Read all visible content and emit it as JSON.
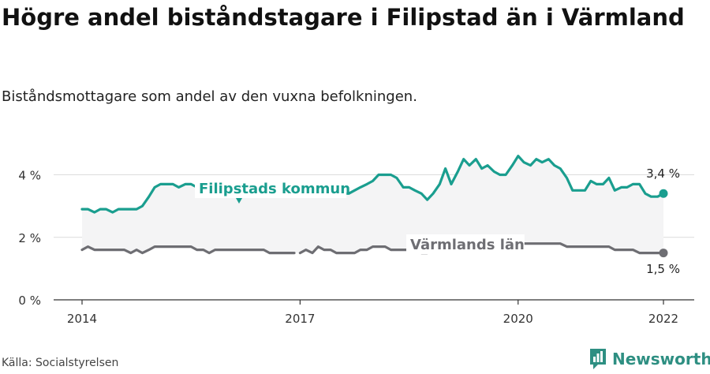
{
  "title": "Högre andel biståndstagare i Filipstad än i Värmland",
  "subtitle": "Biståndsmottagare som andel av den vuxna befolkningen.",
  "source": "Källa: Socialstyrelsen",
  "brand": "Newsworthy",
  "chart_data": {
    "type": "line",
    "y_unit": "%",
    "ylim": [
      0,
      5.3
    ],
    "yticks": [
      0,
      2,
      4
    ],
    "ytick_labels": [
      "0 %",
      "2 %",
      "4 %"
    ],
    "xlim": [
      2014.0,
      2022.0
    ],
    "xticks": [
      2014,
      2017,
      2020,
      2022
    ],
    "xtick_labels": [
      "2014",
      "2017",
      "2020",
      "2022"
    ],
    "grid": true,
    "colors": {
      "filipstad": "#1a9e8f",
      "varmland": "#6e6e73",
      "shade": "#f4f4f5"
    },
    "series": [
      {
        "name": "Filipstads kommun",
        "end_label": "3,4 %",
        "points": [
          [
            2014.0,
            2.9
          ],
          [
            2014.08,
            2.9
          ],
          [
            2014.17,
            2.8
          ],
          [
            2014.25,
            2.9
          ],
          [
            2014.33,
            2.9
          ],
          [
            2014.42,
            2.8
          ],
          [
            2014.5,
            2.9
          ],
          [
            2014.58,
            2.9
          ],
          [
            2014.67,
            2.9
          ],
          [
            2014.75,
            2.9
          ],
          [
            2014.83,
            3.0
          ],
          [
            2014.92,
            3.3
          ],
          [
            2015.0,
            3.6
          ],
          [
            2015.08,
            3.7
          ],
          [
            2015.17,
            3.7
          ],
          [
            2015.25,
            3.7
          ],
          [
            2015.33,
            3.6
          ],
          [
            2015.42,
            3.7
          ],
          [
            2015.5,
            3.7
          ],
          [
            2015.58,
            3.6
          ],
          [
            2015.67,
            3.5
          ],
          [
            2015.75,
            3.3
          ],
          [
            2015.83,
            3.3
          ],
          [
            2015.92,
            3.3
          ],
          [
            2016.0,
            3.4
          ],
          [
            2016.08,
            3.3
          ],
          [
            2016.17,
            3.3
          ],
          [
            2016.25,
            3.3
          ],
          [
            2016.33,
            3.4
          ],
          [
            2016.42,
            3.4
          ],
          [
            2016.5,
            3.4
          ],
          [
            2016.58,
            3.5
          ],
          [
            2016.67,
            3.5
          ],
          [
            2016.75,
            3.5
          ],
          [
            2016.83,
            3.5
          ],
          [
            2016.92,
            3.5
          ],
          [
            2017.0,
            3.5
          ],
          [
            2017.08,
            3.5
          ],
          [
            2017.17,
            3.5
          ],
          [
            2017.25,
            3.5
          ],
          [
            2017.33,
            3.4
          ],
          [
            2017.42,
            3.4
          ],
          [
            2017.5,
            3.4
          ],
          [
            2017.58,
            3.4
          ],
          [
            2017.67,
            3.4
          ],
          [
            2017.75,
            3.5
          ],
          [
            2017.83,
            3.6
          ],
          [
            2017.92,
            3.7
          ],
          [
            2018.0,
            3.8
          ],
          [
            2018.08,
            4.0
          ],
          [
            2018.17,
            4.0
          ],
          [
            2018.25,
            4.0
          ],
          [
            2018.33,
            3.9
          ],
          [
            2018.42,
            3.6
          ],
          [
            2018.5,
            3.6
          ],
          [
            2018.58,
            3.5
          ],
          [
            2018.67,
            3.4
          ],
          [
            2018.75,
            3.2
          ],
          [
            2018.83,
            3.4
          ],
          [
            2018.92,
            3.7
          ],
          [
            2019.0,
            4.2
          ],
          [
            2019.08,
            3.7
          ],
          [
            2019.17,
            4.1
          ],
          [
            2019.25,
            4.5
          ],
          [
            2019.33,
            4.3
          ],
          [
            2019.42,
            4.5
          ],
          [
            2019.5,
            4.2
          ],
          [
            2019.58,
            4.3
          ],
          [
            2019.67,
            4.1
          ],
          [
            2019.75,
            4.0
          ],
          [
            2019.83,
            4.0
          ],
          [
            2019.92,
            4.3
          ],
          [
            2020.0,
            4.6
          ],
          [
            2020.08,
            4.4
          ],
          [
            2020.17,
            4.3
          ],
          [
            2020.25,
            4.5
          ],
          [
            2020.33,
            4.4
          ],
          [
            2020.42,
            4.5
          ],
          [
            2020.5,
            4.3
          ],
          [
            2020.58,
            4.2
          ],
          [
            2020.67,
            3.9
          ],
          [
            2020.75,
            3.5
          ],
          [
            2020.83,
            3.5
          ],
          [
            2020.92,
            3.5
          ],
          [
            2021.0,
            3.8
          ],
          [
            2021.08,
            3.7
          ],
          [
            2021.17,
            3.7
          ],
          [
            2021.25,
            3.9
          ],
          [
            2021.33,
            3.5
          ],
          [
            2021.42,
            3.6
          ],
          [
            2021.5,
            3.6
          ],
          [
            2021.58,
            3.7
          ],
          [
            2021.67,
            3.7
          ],
          [
            2021.75,
            3.4
          ],
          [
            2021.83,
            3.3
          ],
          [
            2021.92,
            3.3
          ],
          [
            2022.0,
            3.4
          ]
        ]
      },
      {
        "name": "Värmlands län",
        "end_label": "1,5 %",
        "points": [
          [
            2014.0,
            1.6
          ],
          [
            2014.08,
            1.7
          ],
          [
            2014.17,
            1.6
          ],
          [
            2014.25,
            1.6
          ],
          [
            2014.33,
            1.6
          ],
          [
            2014.42,
            1.6
          ],
          [
            2014.5,
            1.6
          ],
          [
            2014.58,
            1.6
          ],
          [
            2014.67,
            1.5
          ],
          [
            2014.75,
            1.6
          ],
          [
            2014.83,
            1.5
          ],
          [
            2014.92,
            1.6
          ],
          [
            2015.0,
            1.7
          ],
          [
            2015.08,
            1.7
          ],
          [
            2015.17,
            1.7
          ],
          [
            2015.25,
            1.7
          ],
          [
            2015.33,
            1.7
          ],
          [
            2015.42,
            1.7
          ],
          [
            2015.5,
            1.7
          ],
          [
            2015.58,
            1.6
          ],
          [
            2015.67,
            1.6
          ],
          [
            2015.75,
            1.5
          ],
          [
            2015.83,
            1.6
          ],
          [
            2015.92,
            1.6
          ],
          [
            2016.0,
            1.6
          ],
          [
            2016.08,
            1.6
          ],
          [
            2016.17,
            1.6
          ],
          [
            2016.25,
            1.6
          ],
          [
            2016.33,
            1.6
          ],
          [
            2016.42,
            1.6
          ],
          [
            2016.5,
            1.6
          ],
          [
            2016.58,
            1.5
          ],
          [
            2016.67,
            1.5
          ],
          [
            2016.75,
            1.5
          ],
          [
            2016.83,
            1.5
          ],
          [
            2016.92,
            1.5
          ],
          null,
          [
            2017.0,
            1.5
          ],
          [
            2017.08,
            1.6
          ],
          [
            2017.17,
            1.5
          ],
          [
            2017.25,
            1.7
          ],
          [
            2017.33,
            1.6
          ],
          [
            2017.42,
            1.6
          ],
          [
            2017.5,
            1.5
          ],
          [
            2017.58,
            1.5
          ],
          [
            2017.67,
            1.5
          ],
          [
            2017.75,
            1.5
          ],
          [
            2017.83,
            1.6
          ],
          [
            2017.92,
            1.6
          ],
          [
            2018.0,
            1.7
          ],
          [
            2018.08,
            1.7
          ],
          [
            2018.17,
            1.7
          ],
          [
            2018.25,
            1.6
          ],
          [
            2018.33,
            1.6
          ],
          [
            2018.42,
            1.6
          ],
          [
            2018.5,
            1.6
          ],
          [
            2018.58,
            1.6
          ],
          [
            2018.67,
            1.5
          ],
          [
            2018.75,
            1.5
          ],
          [
            2018.83,
            1.6
          ],
          [
            2018.92,
            1.6
          ],
          [
            2019.0,
            1.7
          ],
          [
            2019.08,
            1.7
          ],
          [
            2019.17,
            1.7
          ],
          [
            2019.25,
            1.7
          ],
          [
            2019.33,
            1.7
          ],
          [
            2019.42,
            1.7
          ],
          [
            2019.5,
            1.7
          ],
          [
            2019.58,
            1.7
          ],
          [
            2019.67,
            1.8
          ],
          [
            2019.75,
            1.8
          ],
          [
            2019.83,
            1.8
          ],
          [
            2019.92,
            1.8
          ],
          [
            2020.0,
            1.8
          ],
          [
            2020.08,
            1.8
          ],
          [
            2020.17,
            1.8
          ],
          [
            2020.25,
            1.8
          ],
          [
            2020.33,
            1.8
          ],
          [
            2020.42,
            1.8
          ],
          [
            2020.5,
            1.8
          ],
          [
            2020.58,
            1.8
          ],
          [
            2020.67,
            1.7
          ],
          [
            2020.75,
            1.7
          ],
          [
            2020.83,
            1.7
          ],
          [
            2020.92,
            1.7
          ],
          [
            2021.0,
            1.7
          ],
          [
            2021.08,
            1.7
          ],
          [
            2021.17,
            1.7
          ],
          [
            2021.25,
            1.7
          ],
          [
            2021.33,
            1.6
          ],
          [
            2021.42,
            1.6
          ],
          [
            2021.5,
            1.6
          ],
          [
            2021.58,
            1.6
          ],
          [
            2021.67,
            1.5
          ],
          [
            2021.75,
            1.5
          ],
          [
            2021.83,
            1.5
          ],
          [
            2021.92,
            1.5
          ],
          [
            2022.0,
            1.5
          ]
        ]
      }
    ]
  }
}
